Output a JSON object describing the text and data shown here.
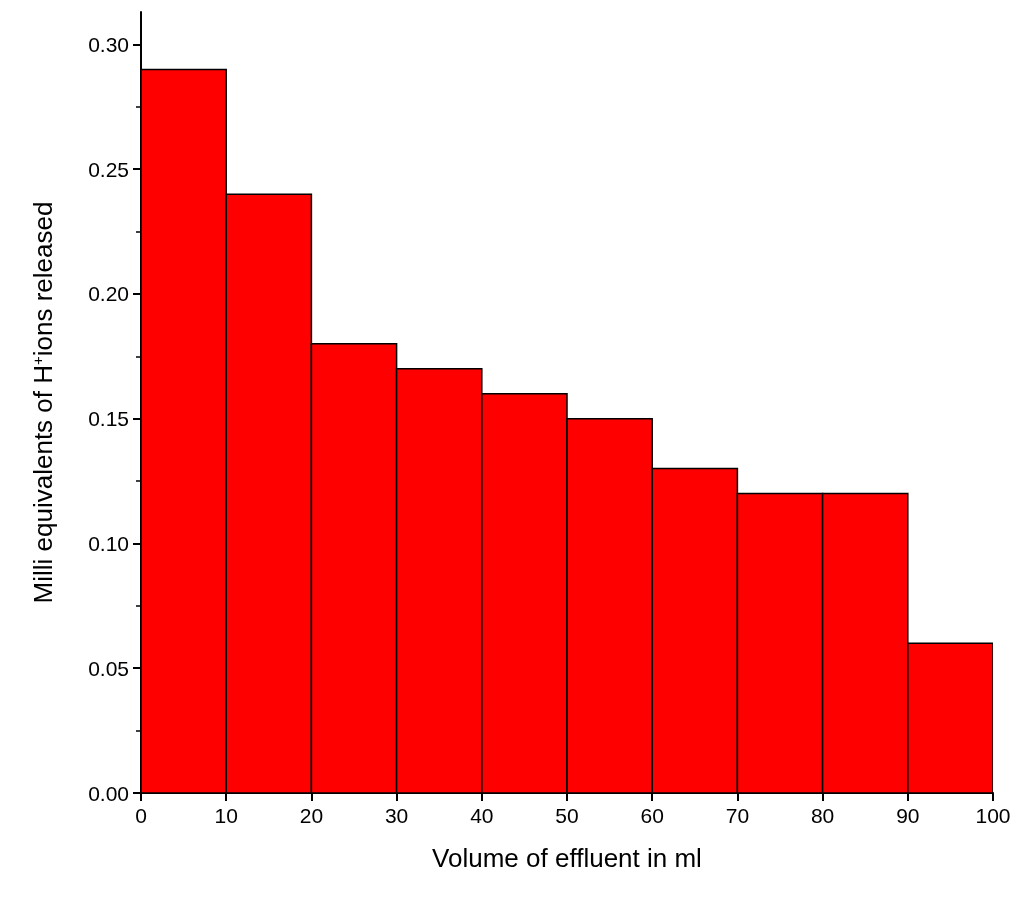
{
  "chart_data": {
    "type": "histogram",
    "xlabel": "Volume of effluent in ml",
    "ylabel": "Milli equivalents of H$^{+}$ions released",
    "bins": [
      0,
      10,
      20,
      30,
      40,
      50,
      60,
      70,
      80,
      90,
      100
    ],
    "values": [
      0.29,
      0.24,
      0.18,
      0.17,
      0.16,
      0.15,
      0.13,
      0.12,
      0.12,
      0.06
    ],
    "color": "#ff0000",
    "xlim": [
      0,
      100
    ],
    "xticks": [
      0,
      10,
      20,
      30,
      40,
      50,
      60,
      70,
      80,
      90,
      100
    ],
    "ylim": [
      0,
      0.313
    ],
    "yticks": [
      {
        "value": 0,
        "label": "0.00"
      },
      {
        "value": 0.05,
        "label": "0.05"
      },
      {
        "value": 0.1,
        "label": "0.10"
      },
      {
        "value": 0.15,
        "label": "0.15"
      },
      {
        "value": 0.2,
        "label": "0.20"
      },
      {
        "value": 0.25,
        "label": "0.25"
      },
      {
        "value": 0.3,
        "label": "0.30"
      }
    ],
    "grid": false
  }
}
